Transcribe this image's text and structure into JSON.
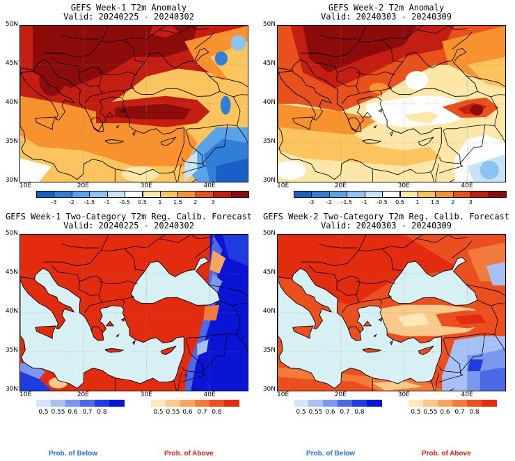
{
  "panels": [
    {
      "key": "w1anom",
      "title1": "GEFS Week-1 T2m Anomaly",
      "title2": "Valid: 20240225 - 20240302"
    },
    {
      "key": "w2anom",
      "title1": "GEFS Week-2 T2m Anomaly",
      "title2": "Valid: 20240303 - 20240309"
    },
    {
      "key": "w1prob",
      "title1": "GEFS Week-1 Two-Category T2m Reg. Calib. Forecast",
      "title2": "Valid: 20240225 - 20240302"
    },
    {
      "key": "w2prob",
      "title1": "GEFS Week-2 Two-Category T2m Reg. Calib. Forecast",
      "title2": "Valid: 20240303 - 20240309"
    }
  ],
  "lat_labels": [
    "50N",
    "45N",
    "40N",
    "35N",
    "30N"
  ],
  "lon_labels": [
    "10E",
    "20E",
    "30E",
    "40E"
  ],
  "anomaly_colorbar": {
    "ticks": [
      "-3",
      "-2",
      "-1.5",
      "-1",
      "-0.5",
      "0.5",
      "1",
      "1.5",
      "2",
      "3"
    ],
    "colors": [
      "#1a5fc8",
      "#2f7fd8",
      "#5aa3e8",
      "#8cc3f2",
      "#c8e3f8",
      "#ffffff",
      "#fde7a8",
      "#fcc45e",
      "#f8922e",
      "#e8501c",
      "#c41d12",
      "#8c0b0b"
    ]
  },
  "prob_colorbar_below": {
    "ticks": [
      "0.5",
      "0.55",
      "0.6",
      "0.7",
      "0.8"
    ],
    "colors": [
      "#d6e4fb",
      "#a7c0f5",
      "#7b98ee",
      "#4c69e6",
      "#1f3ce0",
      "#0a14d4"
    ]
  },
  "prob_colorbar_above": {
    "ticks": [
      "0.5",
      "0.55",
      "0.6",
      "0.7",
      "0.8"
    ],
    "colors": [
      "#fde9b8",
      "#fbc98a",
      "#f8a35e",
      "#f27a3a",
      "#ec4f1f",
      "#e32b10"
    ]
  },
  "prob_below_label": "Prob. of Below",
  "prob_above_label": "Prob. of Above",
  "colors": {
    "below_label": "#1f6fe0",
    "above_label": "#e02010",
    "sea": "#d6f0f4"
  }
}
